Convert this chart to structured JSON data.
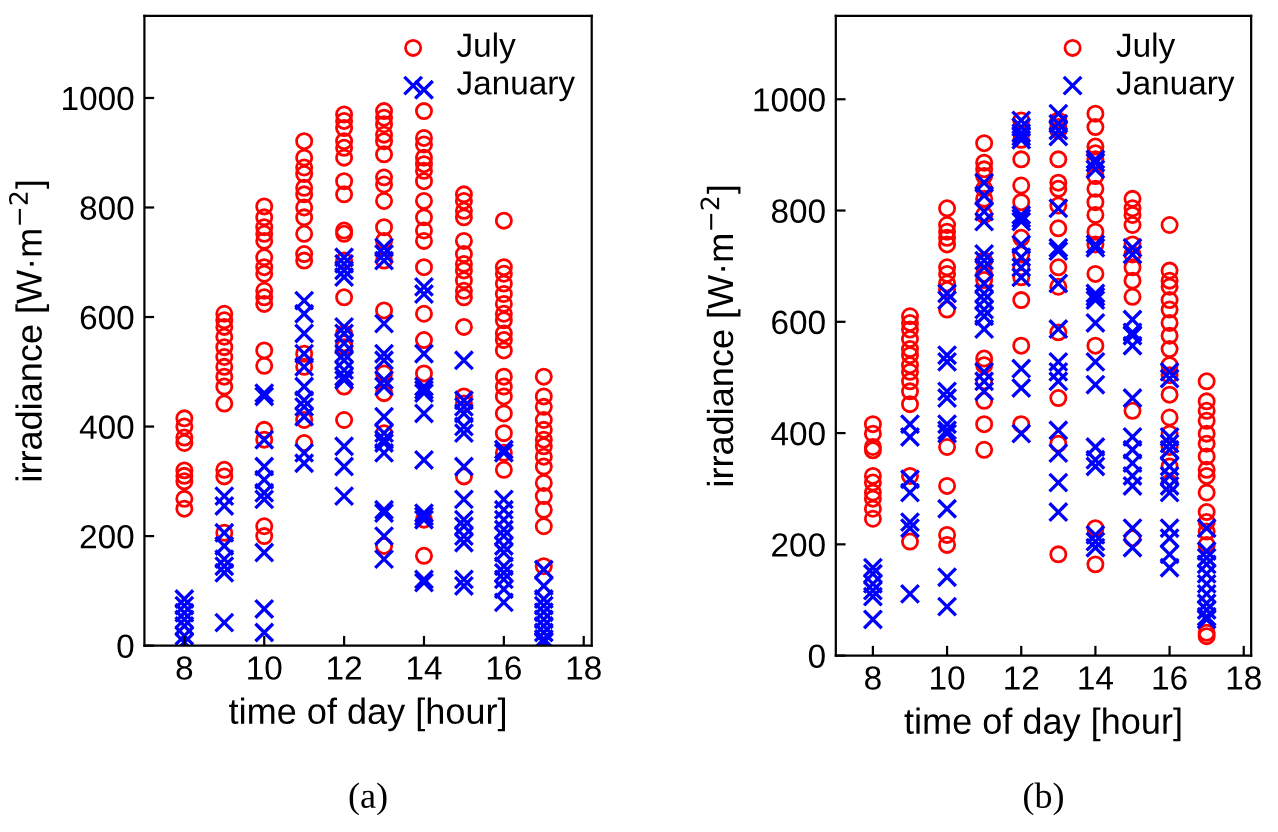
{
  "chart_data": [
    {
      "type": "scatter",
      "xlabel": "time of day [hour]",
      "ylabel": "irradiance [W·m$^{−2}$]",
      "annotations": [
        "(a)"
      ],
      "xlim": [
        7,
        18.2
      ],
      "xticks": [
        8,
        10,
        12,
        14,
        16,
        18
      ],
      "ylim": [
        0,
        1150
      ],
      "yticks": [
        0,
        200,
        400,
        600,
        800,
        1000
      ],
      "grid": false,
      "legend": "top right",
      "series": [
        {
          "name": "July",
          "color": "#ff0000",
          "marker": "circle",
          "x": [
            8,
            8,
            8,
            8,
            8,
            8,
            8,
            8,
            8,
            9,
            9,
            9,
            9,
            9,
            9,
            9,
            9,
            9,
            9,
            9,
            9,
            9,
            10,
            10,
            10,
            10,
            10,
            10,
            10,
            10,
            10,
            10,
            10,
            10,
            10,
            10,
            10,
            10,
            10,
            11,
            11,
            11,
            11,
            11,
            11,
            11,
            11,
            11,
            11,
            11,
            11,
            11,
            11,
            11,
            12,
            12,
            12,
            12,
            12,
            12,
            12,
            12,
            12,
            12,
            12,
            12,
            12,
            12,
            12,
            12,
            12,
            13,
            13,
            13,
            13,
            13,
            13,
            13,
            13,
            13,
            13,
            13,
            13,
            13,
            13,
            13,
            13,
            13,
            14,
            14,
            14,
            14,
            14,
            14,
            14,
            14,
            14,
            14,
            14,
            14,
            14,
            14,
            14,
            14,
            14,
            15,
            15,
            15,
            15,
            15,
            15,
            15,
            15,
            15,
            15,
            15,
            15,
            15,
            15,
            15,
            16,
            16,
            16,
            16,
            16,
            16,
            16,
            16,
            16,
            16,
            16,
            16,
            16,
            16,
            16,
            16,
            16,
            16,
            17,
            17,
            17,
            17,
            17,
            17,
            17,
            17,
            17,
            17,
            17,
            17,
            17,
            17
          ],
          "values": [
            415,
            400,
            380,
            370,
            320,
            310,
            300,
            268,
            250,
            606,
            594,
            582,
            564,
            545,
            527,
            509,
            491,
            473,
            442,
            321,
            309,
            206,
            802,
            782,
            764,
            752,
            739,
            709,
            691,
            679,
            648,
            636,
            624,
            539,
            511,
            394,
            376,
            218,
            200,
            921,
            891,
            873,
            861,
            836,
            824,
            800,
            782,
            752,
            715,
            703,
            533,
            509,
            412,
            370,
            970,
            958,
            945,
            921,
            909,
            891,
            848,
            824,
            758,
            752,
            703,
            636,
            570,
            552,
            545,
            473,
            412,
            976,
            964,
            952,
            933,
            921,
            897,
            855,
            842,
            812,
            764,
            739,
            703,
            612,
            497,
            461,
            388,
            182,
            976,
            927,
            915,
            891,
            879,
            867,
            848,
            812,
            782,
            758,
            739,
            691,
            606,
            558,
            497,
            230,
            164,
            824,
            812,
            794,
            782,
            739,
            715,
            697,
            685,
            667,
            648,
            636,
            582,
            455,
            442,
            309,
            776,
            691,
            679,
            661,
            642,
            624,
            606,
            594,
            570,
            558,
            539,
            491,
            473,
            455,
            424,
            388,
            352,
            321,
            491,
            455,
            436,
            412,
            394,
            376,
            364,
            345,
            327,
            297,
            273,
            248,
            218,
            145
          ]
        },
        {
          "name": "January",
          "color": "#0000ff",
          "marker": "cross",
          "x": [
            8,
            8,
            8,
            8,
            8,
            8,
            8,
            9,
            9,
            9,
            9,
            9,
            9,
            9,
            9,
            10,
            10,
            10,
            10,
            10,
            10,
            10,
            10,
            10,
            10,
            11,
            11,
            11,
            11,
            11,
            11,
            11,
            11,
            11,
            11,
            11,
            12,
            12,
            12,
            12,
            12,
            12,
            12,
            12,
            12,
            12,
            12,
            12,
            12,
            12,
            12,
            13,
            13,
            13,
            13,
            13,
            13,
            13,
            13,
            13,
            13,
            13,
            13,
            13,
            13,
            13,
            13,
            13,
            14,
            14,
            14,
            14,
            14,
            14,
            14,
            14,
            14,
            14,
            14,
            14,
            14,
            14,
            15,
            15,
            15,
            15,
            15,
            15,
            15,
            15,
            15,
            15,
            15,
            15,
            15,
            15,
            16,
            16,
            16,
            16,
            16,
            16,
            16,
            16,
            16,
            16,
            16,
            16,
            16,
            16,
            17,
            17,
            17,
            17,
            17,
            17,
            17,
            17,
            17,
            17
          ],
          "values": [
            85,
            73,
            60,
            48,
            36,
            18,
            6,
            273,
            255,
            206,
            182,
            158,
            145,
            133,
            42,
            461,
            455,
            376,
            327,
            303,
            279,
            267,
            170,
            67,
            24,
            630,
            606,
            570,
            533,
            509,
            473,
            448,
            436,
            418,
            352,
            333,
            709,
            697,
            685,
            673,
            582,
            570,
            552,
            533,
            521,
            503,
            491,
            485,
            364,
            327,
            273,
            727,
            715,
            703,
            588,
            533,
            521,
            485,
            473,
            418,
            388,
            376,
            370,
            352,
            248,
            242,
            200,
            158,
            1015,
            655,
            642,
            533,
            473,
            467,
            461,
            424,
            339,
            242,
            236,
            230,
            121,
            115,
            521,
            448,
            436,
            424,
            400,
            388,
            327,
            267,
            230,
            218,
            200,
            188,
            121,
            109,
            358,
            352,
            267,
            248,
            230,
            212,
            200,
            182,
            170,
            145,
            133,
            121,
            103,
            79,
            139,
            109,
            85,
            73,
            61,
            48,
            36,
            24,
            12,
            6
          ]
        }
      ]
    },
    {
      "type": "scatter",
      "xlabel": "time of day [hour]",
      "ylabel": "irradiance [W·m$^{−2}$]",
      "annotations": [
        "(b)"
      ],
      "xlim": [
        7,
        18.2
      ],
      "xticks": [
        8,
        10,
        12,
        14,
        16,
        18
      ],
      "ylim": [
        0,
        1150
      ],
      "yticks": [
        0,
        200,
        400,
        600,
        800,
        1000
      ],
      "grid": false,
      "legend": "top right",
      "series": [
        {
          "name": "July",
          "color": "#ff0000",
          "marker": "circle",
          "x": [
            8,
            8,
            8,
            8,
            8,
            8,
            8,
            8,
            8,
            8,
            9,
            9,
            9,
            9,
            9,
            9,
            9,
            9,
            9,
            9,
            9,
            9,
            9,
            10,
            10,
            10,
            10,
            10,
            10,
            10,
            10,
            10,
            10,
            10,
            10,
            10,
            10,
            11,
            11,
            11,
            11,
            11,
            11,
            11,
            11,
            11,
            11,
            11,
            11,
            11,
            11,
            11,
            11,
            12,
            12,
            12,
            12,
            12,
            12,
            12,
            12,
            12,
            12,
            12,
            12,
            13,
            13,
            13,
            13,
            13,
            13,
            13,
            13,
            13,
            13,
            13,
            13,
            13,
            13,
            14,
            14,
            14,
            14,
            14,
            14,
            14,
            14,
            14,
            14,
            14,
            14,
            14,
            14,
            14,
            15,
            15,
            15,
            15,
            15,
            15,
            15,
            15,
            15,
            15,
            15,
            16,
            16,
            16,
            16,
            16,
            16,
            16,
            16,
            16,
            16,
            16,
            16,
            16,
            16,
            16,
            16,
            16,
            17,
            17,
            17,
            17,
            17,
            17,
            17,
            17,
            17,
            17,
            17,
            17,
            17,
            17,
            17,
            17
          ],
          "values": [
            416,
            399,
            375,
            369,
            323,
            311,
            293,
            282,
            264,
            246,
            610,
            598,
            586,
            569,
            551,
            540,
            522,
            510,
            493,
            475,
            452,
            323,
            205,
            804,
            774,
            762,
            751,
            739,
            698,
            686,
            669,
            657,
            622,
            375,
            305,
            217,
            199,
            921,
            886,
            874,
            862,
            839,
            821,
            792,
            710,
            686,
            675,
            534,
            522,
            493,
            458,
            416,
            370,
            962,
            927,
            892,
            845,
            815,
            751,
            721,
            698,
            680,
            639,
            557,
            416,
            962,
            950,
            944,
            892,
            850,
            839,
            809,
            768,
            698,
            663,
            581,
            463,
            381,
            182,
            974,
            950,
            915,
            903,
            892,
            862,
            839,
            815,
            792,
            762,
            739,
            686,
            557,
            229,
            164,
            821,
            804,
            792,
            774,
            739,
            721,
            698,
            674,
            645,
            440,
            211,
            774,
            692,
            674,
            663,
            639,
            622,
            598,
            575,
            551,
            522,
            504,
            469,
            428,
            399,
            375,
            340,
            311,
            493,
            457,
            440,
            422,
            399,
            381,
            358,
            334,
            323,
            293,
            258,
            240,
            223,
            199,
            41,
            35
          ]
        },
        {
          "name": "January",
          "color": "#0000ff",
          "marker": "cross",
          "x": [
            8,
            8,
            8,
            8,
            8,
            8,
            9,
            9,
            9,
            9,
            9,
            9,
            9,
            10,
            10,
            10,
            10,
            10,
            10,
            10,
            10,
            10,
            10,
            10,
            10,
            11,
            11,
            11,
            11,
            11,
            11,
            11,
            11,
            11,
            11,
            11,
            11,
            11,
            11,
            11,
            11,
            12,
            12,
            12,
            12,
            12,
            12,
            12,
            12,
            12,
            12,
            12,
            12,
            12,
            12,
            12,
            13,
            13,
            13,
            13,
            13,
            13,
            13,
            13,
            13,
            13,
            13,
            13,
            13,
            13,
            13,
            13,
            14,
            14,
            14,
            14,
            14,
            14,
            14,
            14,
            14,
            14,
            14,
            14,
            14,
            14,
            14,
            14,
            14,
            15,
            15,
            15,
            15,
            15,
            15,
            15,
            15,
            15,
            15,
            15,
            15,
            15,
            15,
            16,
            16,
            16,
            16,
            16,
            16,
            16,
            16,
            16,
            16,
            16,
            16,
            16,
            17,
            17,
            17,
            17,
            17,
            17,
            17,
            17,
            17,
            17,
            17
          ],
          "values": [
            158,
            147,
            129,
            117,
            106,
            65,
            416,
            393,
            317,
            293,
            240,
            229,
            111,
            651,
            639,
            540,
            528,
            475,
            463,
            416,
            405,
            399,
            264,
            141,
            88,
            850,
            827,
            798,
            780,
            722,
            710,
            698,
            669,
            651,
            639,
            622,
            610,
            587,
            510,
            493,
            475,
            962,
            950,
            939,
            933,
            927,
            792,
            786,
            780,
            739,
            716,
            698,
            680,
            516,
            481,
            399,
            974,
            956,
            944,
            933,
            804,
            733,
            727,
            669,
            587,
            528,
            510,
            493,
            405,
            364,
            311,
            258,
            892,
            886,
            874,
            739,
            733,
            651,
            645,
            639,
            598,
            528,
            487,
            375,
            352,
            340,
            217,
            205,
            194,
            733,
            721,
            604,
            581,
            575,
            557,
            463,
            393,
            370,
            346,
            323,
            305,
            229,
            194,
            510,
            498,
            393,
            381,
            370,
            340,
            323,
            305,
            293,
            229,
            211,
            182,
            158,
            229,
            188,
            176,
            164,
            147,
            129,
            111,
            94,
            82,
            70,
            65
          ]
        }
      ]
    }
  ]
}
